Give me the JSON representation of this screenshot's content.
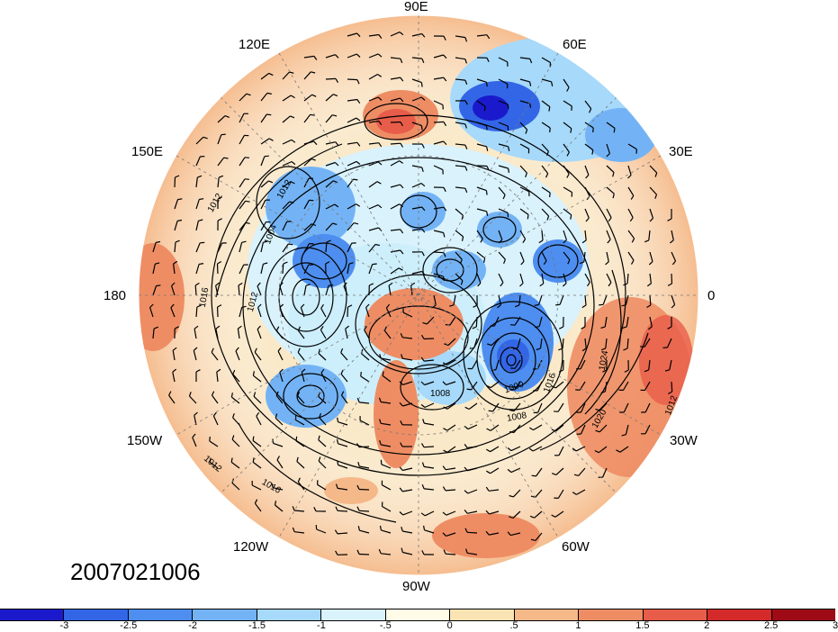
{
  "map": {
    "projection": "polar-stereographic-north",
    "timestamp": "2007021006",
    "longitude_labels": [
      {
        "text": "90E"
      },
      {
        "text": "60E"
      },
      {
        "text": "30E"
      },
      {
        "text": "0"
      },
      {
        "text": "30W"
      },
      {
        "text": "60W"
      },
      {
        "text": "90W"
      },
      {
        "text": "120W"
      },
      {
        "text": "150W"
      },
      {
        "text": "180"
      },
      {
        "text": "150E"
      },
      {
        "text": "120E"
      }
    ],
    "isobar_labels": [
      "1012",
      "1004",
      "1016",
      "1012",
      "1008",
      "1000",
      "1008",
      "1016",
      "1024",
      "1020",
      "1012",
      "1012",
      "1016",
      "1012"
    ]
  },
  "colorbar": {
    "ticks": [
      "-3",
      "-2.5",
      "-2",
      "-1.5",
      "-1",
      "-.5",
      "0",
      ".5",
      "1",
      "1.5",
      "2",
      "2.5",
      "3"
    ],
    "colors": [
      "#1a1acc",
      "#3366e6",
      "#4d8ef0",
      "#73b3f5",
      "#a6d9fa",
      "#d9f2fc",
      "#fffbe6",
      "#fae4b4",
      "#f5b889",
      "#ee8d64",
      "#e85c4a",
      "#d42a2a",
      "#9e0b16"
    ]
  }
}
